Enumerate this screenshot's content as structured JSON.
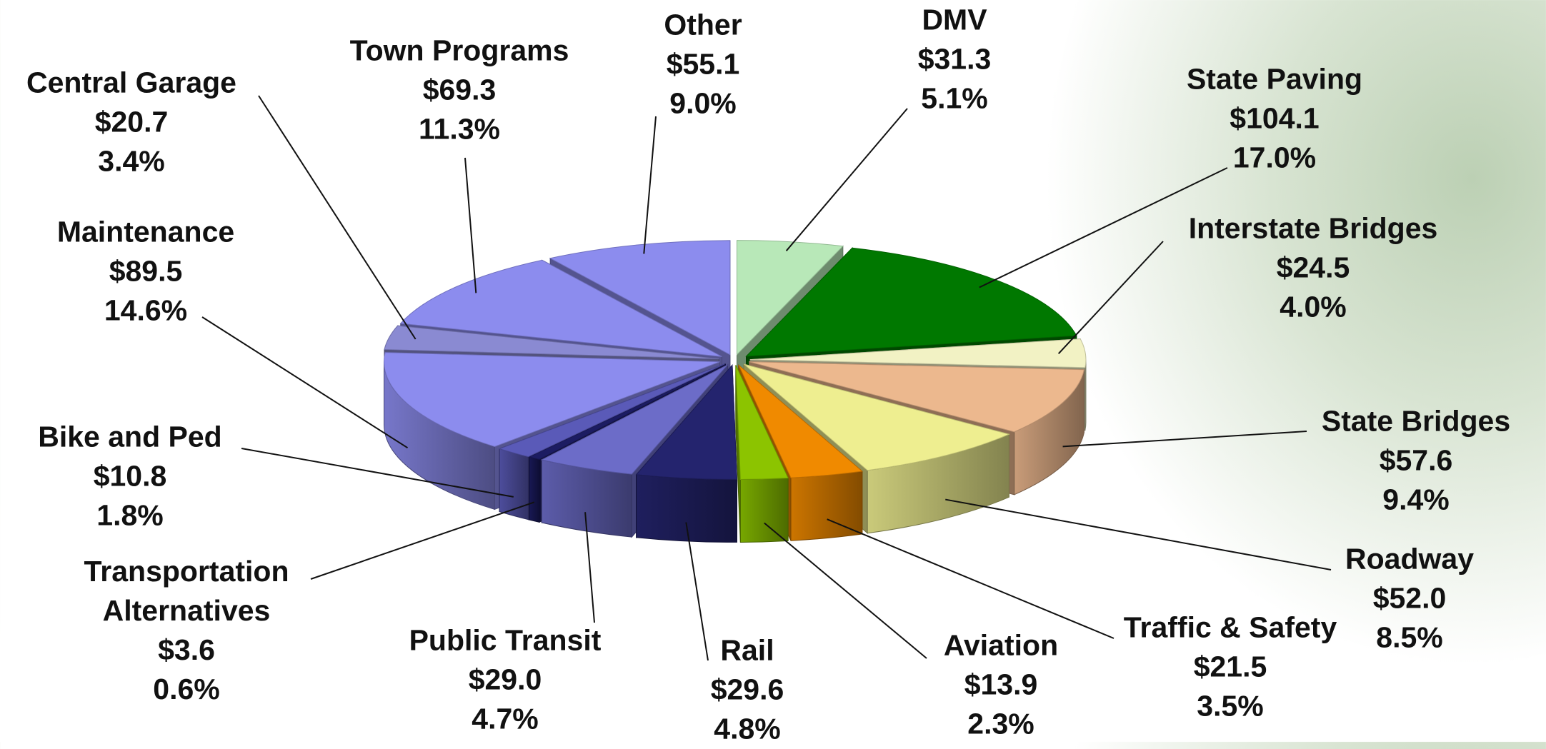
{
  "chart_data": {
    "type": "pie",
    "categories": [
      "DMV",
      "State Paving",
      "Interstate Bridges",
      "State Bridges",
      "Roadway",
      "Traffic & Safety",
      "Aviation",
      "Rail",
      "Public Transit",
      "Transportation Alternatives",
      "Bike and Ped",
      "Maintenance",
      "Central Garage",
      "Town Programs",
      "Other"
    ],
    "values": [
      31.3,
      104.1,
      24.5,
      57.6,
      52.0,
      21.5,
      13.9,
      29.6,
      29.0,
      3.6,
      10.8,
      89.5,
      20.7,
      69.3,
      55.1
    ],
    "value_labels": [
      "$31.3",
      "$104.1",
      "$24.5",
      "$57.6",
      "$52.0",
      "$21.5",
      "$13.9",
      "$29.6",
      "$29.0",
      "$3.6",
      "$10.8",
      "$89.5",
      "$20.7",
      "$69.3",
      "$55.1"
    ],
    "shares": [
      5.1,
      17.0,
      4.0,
      9.4,
      8.5,
      3.5,
      2.3,
      4.8,
      4.7,
      0.6,
      1.8,
      14.6,
      3.4,
      11.3,
      9.0
    ],
    "share_labels": [
      "5.1%",
      "17.0%",
      "4.0%",
      "9.4%",
      "8.5%",
      "3.5%",
      "2.3%",
      "4.8%",
      "4.7%",
      "0.6%",
      "1.8%",
      "14.6%",
      "3.4%",
      "11.3%",
      "9.0%"
    ],
    "colors": [
      "#b8e8b8",
      "#007800",
      "#f2f2c4",
      "#ecb88e",
      "#eeee90",
      "#f08a00",
      "#8cc400",
      "#24246e",
      "#6c6cc8",
      "#1c1c62",
      "#5a5ab8",
      "#8c8cee",
      "#8a8ad2",
      "#8c8cee",
      "#8c8cee"
    ]
  }
}
